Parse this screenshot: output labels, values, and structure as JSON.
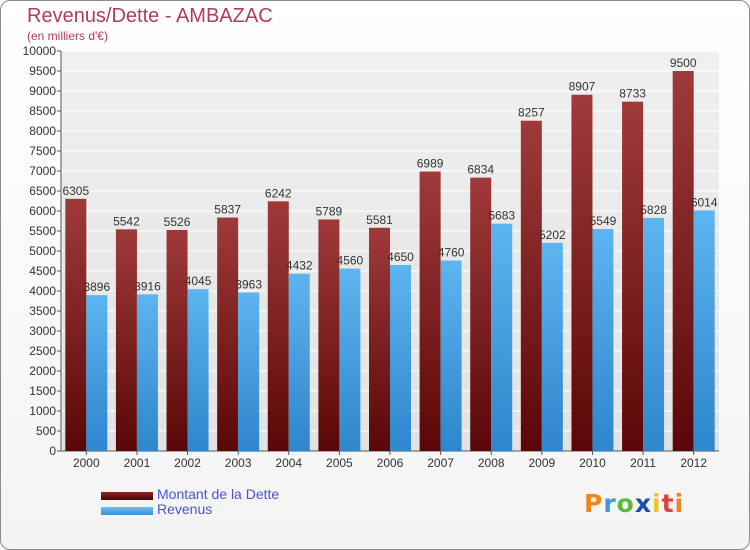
{
  "title": "Revenus/Dette - AMBAZAC",
  "subtitle": "(en milliers d'€)",
  "colors": {
    "dette": "#6b0d0d",
    "revenus": "#4ea3e6",
    "title": "#b23b62",
    "legend_text": "#4a54d8"
  },
  "legend": {
    "dette_label": "Montant de la Dette",
    "revenus_label": "Revenus"
  },
  "logo_text": "Proxiti",
  "chart_data": {
    "type": "bar",
    "categories": [
      "2000",
      "2001",
      "2002",
      "2003",
      "2004",
      "2005",
      "2006",
      "2007",
      "2008",
      "2009",
      "2010",
      "2011",
      "2012"
    ],
    "series": [
      {
        "name": "Montant de la Dette",
        "values": [
          6305,
          5542,
          5526,
          5837,
          6242,
          5789,
          5581,
          6989,
          6834,
          8257,
          8907,
          8733,
          9500
        ]
      },
      {
        "name": "Revenus",
        "values": [
          3896,
          3916,
          4045,
          3963,
          4432,
          4560,
          4650,
          4760,
          5683,
          5202,
          5549,
          5828,
          6014
        ]
      }
    ],
    "ylim": [
      0,
      10000
    ],
    "ytick_step": 500,
    "grid": true,
    "legend_position": "bottom-left"
  }
}
